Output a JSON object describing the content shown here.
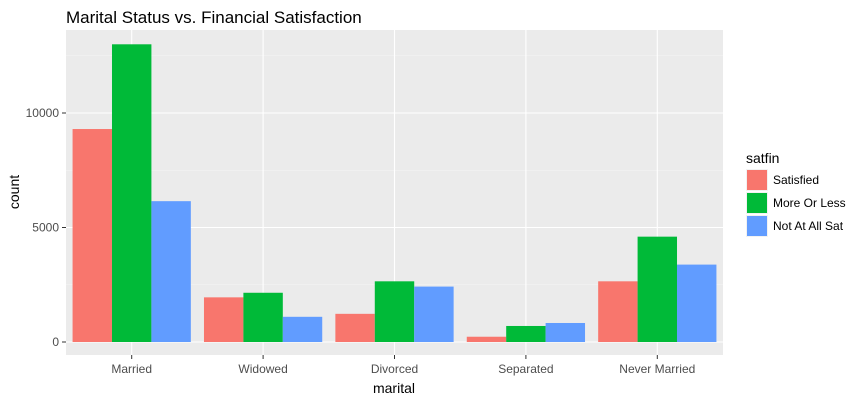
{
  "chart_data": {
    "type": "bar",
    "title": "Marital Status vs. Financial Satisfaction",
    "xlabel": "marital",
    "ylabel": "count",
    "categories": [
      "Married",
      "Widowed",
      "Divorced",
      "Separated",
      "Never Married"
    ],
    "series": [
      {
        "name": "Satisfied",
        "color": "#F8766D",
        "values": [
          9300,
          1950,
          1230,
          230,
          2650
        ]
      },
      {
        "name": "More Or Less",
        "color": "#00BA38",
        "values": [
          13000,
          2150,
          2650,
          700,
          4600
        ]
      },
      {
        "name": "Not At All Sat",
        "color": "#619CFF",
        "values": [
          6150,
          1100,
          2420,
          830,
          3380
        ]
      }
    ],
    "yticks": [
      0,
      5000,
      10000
    ],
    "ylim": [
      0,
      13000
    ],
    "grid": true,
    "legend": {
      "title": "satfin",
      "position": "right"
    }
  }
}
